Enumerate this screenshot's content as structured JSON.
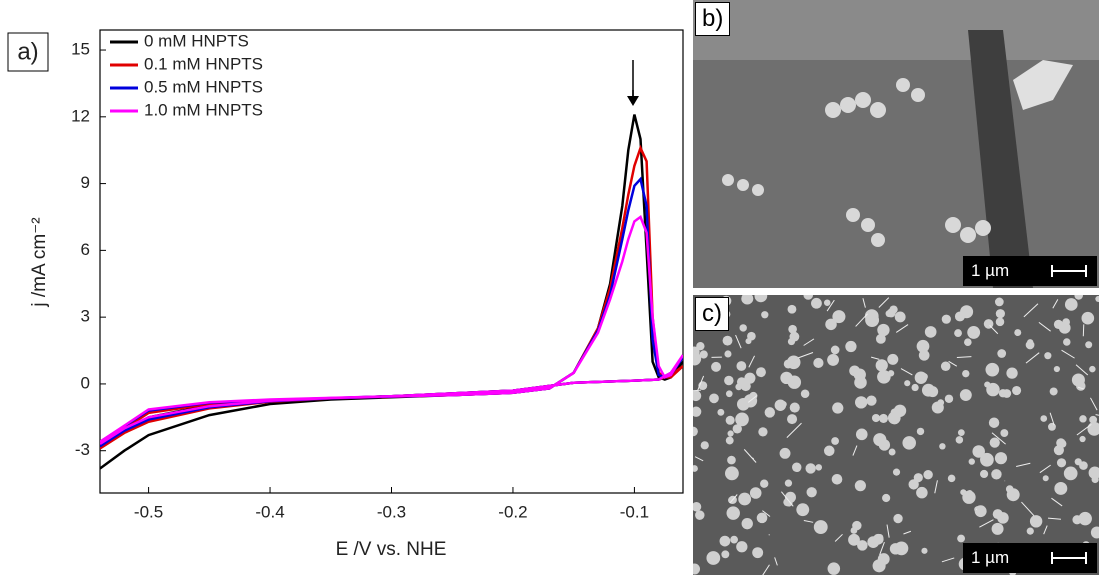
{
  "chart_data": {
    "type": "line",
    "panel_label": "a)",
    "xlabel": "E /V vs. NHE",
    "ylabel": "j /mA cm⁻²",
    "x": [
      -0.54,
      -0.52,
      -0.5,
      -0.45,
      -0.4,
      -0.35,
      -0.3,
      -0.25,
      -0.2,
      -0.17,
      -0.15,
      -0.13,
      -0.12,
      -0.11,
      -0.105,
      -0.1,
      -0.095,
      -0.09,
      -0.085,
      -0.08,
      -0.075,
      -0.07,
      -0.06,
      -0.07,
      -0.08,
      -0.1,
      -0.15,
      -0.2,
      -0.3,
      -0.4,
      -0.45,
      -0.5,
      -0.54
    ],
    "series": [
      {
        "name": "0 mM HNPTS",
        "color": "#000000",
        "values": [
          -3.8,
          -3.0,
          -2.3,
          -1.4,
          -0.9,
          -0.7,
          -0.6,
          -0.5,
          -0.4,
          -0.2,
          0.5,
          2.5,
          4.5,
          8,
          10.5,
          12.1,
          11,
          6,
          1,
          0.3,
          0.2,
          0.3,
          1.0,
          0.4,
          0.2,
          0.15,
          0.05,
          -0.3,
          -0.55,
          -0.75,
          -0.95,
          -1.5,
          -2.8
        ]
      },
      {
        "name": "0.1 mM HNPTS",
        "color": "#e00000",
        "values": [
          -2.9,
          -2.2,
          -1.7,
          -1.1,
          -0.8,
          -0.65,
          -0.58,
          -0.5,
          -0.4,
          -0.2,
          0.5,
          2.5,
          4.3,
          7,
          8.5,
          9.8,
          10.6,
          10,
          3,
          0.5,
          0.3,
          0.3,
          0.8,
          0.4,
          0.2,
          0.15,
          0.05,
          -0.3,
          -0.55,
          -0.75,
          -0.9,
          -1.3,
          -2.7
        ]
      },
      {
        "name": "0.5 mM HNPTS",
        "color": "#0000dd",
        "values": [
          -2.8,
          -2.1,
          -1.6,
          -1.05,
          -0.78,
          -0.64,
          -0.57,
          -0.5,
          -0.4,
          -0.2,
          0.5,
          2.4,
          4.0,
          6.5,
          7.8,
          8.9,
          9.2,
          8,
          2,
          0.4,
          0.3,
          0.4,
          1.2,
          0.5,
          0.2,
          0.15,
          0.05,
          -0.3,
          -0.55,
          -0.72,
          -0.85,
          -1.2,
          -2.6
        ]
      },
      {
        "name": "1.0 mM HNPTS",
        "color": "#ff00ff",
        "values": [
          -2.7,
          -2.0,
          -1.5,
          -1.0,
          -0.76,
          -0.63,
          -0.56,
          -0.5,
          -0.4,
          -0.2,
          0.5,
          2.3,
          3.8,
          5.5,
          6.5,
          7.3,
          7.5,
          6.8,
          3,
          0.8,
          0.3,
          0.4,
          1.3,
          0.5,
          0.2,
          0.15,
          0.05,
          -0.3,
          -0.55,
          -0.7,
          -0.82,
          -1.15,
          -2.6
        ]
      }
    ],
    "xlim": [
      -0.54,
      -0.06
    ],
    "ylim": [
      -4.9,
      15.9
    ],
    "xticks": [
      -0.5,
      -0.4,
      -0.3,
      -0.2,
      -0.1
    ],
    "yticks": [
      -3,
      0,
      3,
      6,
      9,
      12,
      15
    ],
    "grid": false,
    "legend": "upper left"
  },
  "panels": [
    {
      "label": "b)",
      "scale_bar": "1 µm"
    },
    {
      "label": "c)",
      "scale_bar": "1 µm"
    }
  ]
}
